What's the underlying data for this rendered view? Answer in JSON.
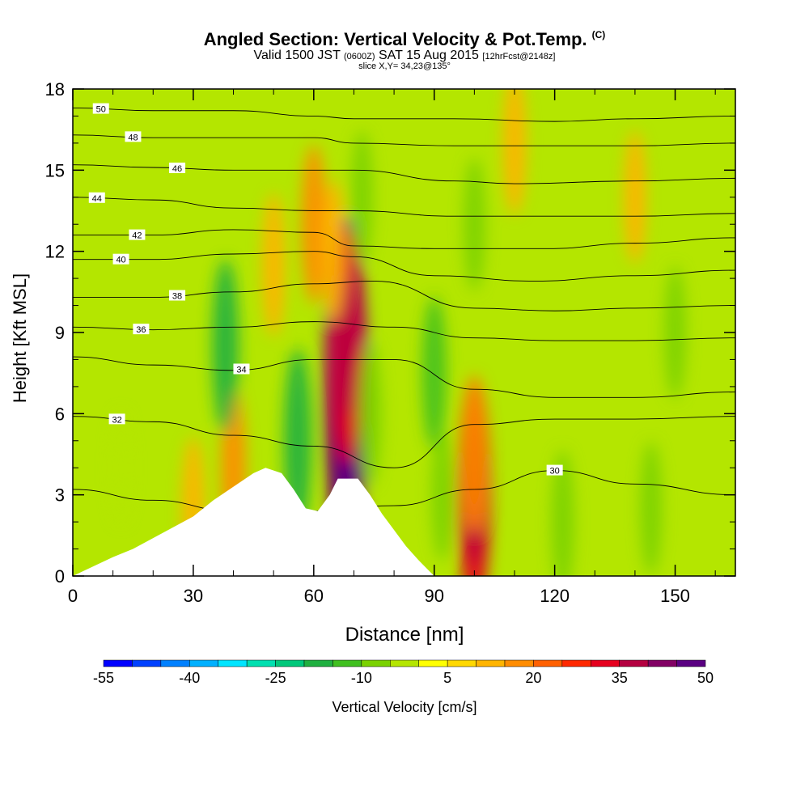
{
  "header": {
    "title": "Angled Section: Vertical Velocity & Pot.Temp.",
    "title_tag": "(C)",
    "subtitle_a": "Valid 1500 JST",
    "subtitle_small_a": "(0600Z)",
    "subtitle_b": "SAT 15 Aug 2015",
    "subtitle_small_b": "[12hrFcst@2148z]",
    "slice": "slice X,Y= 34,23@135°"
  },
  "chart_data": {
    "type": "heatmap",
    "title": "Angled Section: Vertical Velocity & Pot.Temp.",
    "xlabel": "Distance [nm]",
    "ylabel": "Height [Kft MSL]",
    "xlim": [
      0,
      165
    ],
    "ylim": [
      0,
      18
    ],
    "x_ticks": [
      0,
      30,
      60,
      90,
      120,
      150
    ],
    "x_tick_labels": [
      "0",
      "30",
      "60",
      "90",
      "120",
      "150"
    ],
    "y_ticks": [
      0,
      3,
      6,
      9,
      12,
      15,
      18
    ],
    "y_tick_labels": [
      "0",
      "3",
      "6",
      "9",
      "12",
      "15",
      "18"
    ],
    "colorbar": {
      "label": "Vertical Velocity [cm/s]",
      "tick_labels": [
        "-55",
        "-40",
        "-25",
        "-10",
        "5",
        "20",
        "35",
        "50"
      ],
      "tick_values": [
        -55,
        -40,
        -25,
        -10,
        5,
        20,
        35,
        50
      ],
      "colors": [
        "#0000ff",
        "#0040ff",
        "#0080ff",
        "#00b0ff",
        "#00e5ff",
        "#00e0b0",
        "#00c87a",
        "#20b040",
        "#40c020",
        "#7ad200",
        "#b4e600",
        "#ffff00",
        "#ffd800",
        "#ffb400",
        "#ff8c00",
        "#ff6000",
        "#ff2800",
        "#e6001e",
        "#b40040",
        "#820064",
        "#5a0082"
      ]
    },
    "terrain_profile": [
      {
        "x": 0,
        "y": 0.0
      },
      {
        "x": 10,
        "y": 0.7
      },
      {
        "x": 15,
        "y": 1.0
      },
      {
        "x": 20,
        "y": 1.4
      },
      {
        "x": 25,
        "y": 1.8
      },
      {
        "x": 30,
        "y": 2.2
      },
      {
        "x": 35,
        "y": 2.8
      },
      {
        "x": 40,
        "y": 3.3
      },
      {
        "x": 45,
        "y": 3.8
      },
      {
        "x": 48,
        "y": 4.0
      },
      {
        "x": 52,
        "y": 3.8
      },
      {
        "x": 55,
        "y": 3.2
      },
      {
        "x": 58,
        "y": 2.5
      },
      {
        "x": 61,
        "y": 2.4
      },
      {
        "x": 64,
        "y": 3.0
      },
      {
        "x": 66,
        "y": 3.6
      },
      {
        "x": 71,
        "y": 3.6
      },
      {
        "x": 74,
        "y": 3.0
      },
      {
        "x": 77,
        "y": 2.3
      },
      {
        "x": 80,
        "y": 1.7
      },
      {
        "x": 83,
        "y": 1.1
      },
      {
        "x": 86,
        "y": 0.6
      },
      {
        "x": 88,
        "y": 0.3
      },
      {
        "x": 90,
        "y": 0.0
      },
      {
        "x": 165,
        "y": 0.0
      }
    ],
    "velocity_cells": [
      {
        "x": 68,
        "y": 7.0,
        "w": 50
      },
      {
        "x": 68,
        "y": 5.0,
        "w": 40
      },
      {
        "x": 68,
        "y": 8.5,
        "w": 30
      },
      {
        "x": 100,
        "y": 3.0,
        "w": 30
      },
      {
        "x": 100,
        "y": 4.5,
        "w": 15
      },
      {
        "x": 40,
        "y": 4.0,
        "w": 15
      },
      {
        "x": 30,
        "y": 2.5,
        "w": 12
      },
      {
        "x": 60,
        "y": 13.0,
        "w": 15
      },
      {
        "x": 65,
        "y": 12.0,
        "w": 12
      },
      {
        "x": 50,
        "y": 11.5,
        "w": 12
      },
      {
        "x": 110,
        "y": 16.0,
        "w": 12
      },
      {
        "x": 140,
        "y": 14.0,
        "w": 10
      },
      {
        "x": 56,
        "y": 5.0,
        "w": -20
      },
      {
        "x": 74,
        "y": 6.0,
        "w": -12
      },
      {
        "x": 38,
        "y": 8.5,
        "w": -18
      },
      {
        "x": 90,
        "y": 7.5,
        "w": -14
      },
      {
        "x": 92,
        "y": 3.0,
        "w": -10
      },
      {
        "x": 122,
        "y": 2.0,
        "w": -12
      },
      {
        "x": 144,
        "y": 2.5,
        "w": -10
      },
      {
        "x": 100,
        "y": 13.0,
        "w": -10
      },
      {
        "x": 72,
        "y": 14.0,
        "w": -10
      },
      {
        "x": 150,
        "y": 9.0,
        "w": -10
      },
      {
        "x": 12,
        "y": 4.0,
        "w": -6
      }
    ],
    "theta_contours": [
      {
        "value": 30,
        "label": "30",
        "label_x": 120,
        "points": [
          [
            0,
            3.2
          ],
          [
            20,
            2.8
          ],
          [
            40,
            2.4
          ],
          [
            60,
            2.4
          ],
          [
            80,
            2.6
          ],
          [
            100,
            3.2
          ],
          [
            120,
            3.9
          ],
          [
            140,
            3.4
          ],
          [
            165,
            3.0
          ]
        ]
      },
      {
        "value": 32,
        "label": "32",
        "label_x": 11,
        "points": [
          [
            0,
            5.9
          ],
          [
            20,
            5.7
          ],
          [
            40,
            5.2
          ],
          [
            60,
            4.8
          ],
          [
            80,
            4.0
          ],
          [
            100,
            5.6
          ],
          [
            120,
            5.8
          ],
          [
            140,
            5.8
          ],
          [
            165,
            5.9
          ]
        ]
      },
      {
        "value": 34,
        "label": "34",
        "label_x": 42,
        "points": [
          [
            0,
            8.1
          ],
          [
            20,
            7.8
          ],
          [
            40,
            7.6
          ],
          [
            60,
            8.0
          ],
          [
            80,
            8.0
          ],
          [
            100,
            6.9
          ],
          [
            120,
            6.6
          ],
          [
            140,
            6.6
          ],
          [
            165,
            6.8
          ]
        ]
      },
      {
        "value": 36,
        "label": "36",
        "label_x": 17,
        "points": [
          [
            0,
            9.2
          ],
          [
            20,
            9.1
          ],
          [
            40,
            9.2
          ],
          [
            60,
            9.4
          ],
          [
            80,
            9.2
          ],
          [
            100,
            8.8
          ],
          [
            120,
            8.7
          ],
          [
            140,
            8.7
          ],
          [
            165,
            8.8
          ]
        ]
      },
      {
        "value": 38,
        "label": "38",
        "label_x": 26,
        "points": [
          [
            0,
            10.3
          ],
          [
            20,
            10.3
          ],
          [
            40,
            10.5
          ],
          [
            60,
            10.8
          ],
          [
            75,
            10.9
          ],
          [
            100,
            9.9
          ],
          [
            120,
            9.8
          ],
          [
            140,
            9.9
          ],
          [
            165,
            10.0
          ]
        ]
      },
      {
        "value": 40,
        "label": "40",
        "label_x": 12,
        "points": [
          [
            0,
            11.7
          ],
          [
            20,
            11.7
          ],
          [
            40,
            11.9
          ],
          [
            60,
            12.0
          ],
          [
            70,
            11.8
          ],
          [
            90,
            11.1
          ],
          [
            115,
            10.9
          ],
          [
            140,
            11.1
          ],
          [
            165,
            11.3
          ]
        ]
      },
      {
        "value": 42,
        "label": "42",
        "label_x": 16,
        "points": [
          [
            0,
            12.6
          ],
          [
            20,
            12.6
          ],
          [
            40,
            12.8
          ],
          [
            60,
            12.7
          ],
          [
            70,
            12.2
          ],
          [
            90,
            12.1
          ],
          [
            118,
            12.1
          ],
          [
            140,
            12.3
          ],
          [
            165,
            12.5
          ]
        ]
      },
      {
        "value": 44,
        "label": "44",
        "label_x": 6,
        "points": [
          [
            0,
            14.0
          ],
          [
            20,
            13.9
          ],
          [
            40,
            13.6
          ],
          [
            60,
            13.5
          ],
          [
            70,
            13.5
          ],
          [
            95,
            13.3
          ],
          [
            120,
            13.3
          ],
          [
            140,
            13.3
          ],
          [
            165,
            13.4
          ]
        ]
      },
      {
        "value": 46,
        "label": "46",
        "label_x": 26,
        "points": [
          [
            0,
            15.2
          ],
          [
            20,
            15.1
          ],
          [
            40,
            15.0
          ],
          [
            60,
            15.0
          ],
          [
            70,
            15.0
          ],
          [
            95,
            14.6
          ],
          [
            110,
            14.5
          ],
          [
            140,
            14.6
          ],
          [
            165,
            14.7
          ]
        ]
      },
      {
        "value": 48,
        "label": "48",
        "label_x": 15,
        "points": [
          [
            0,
            16.3
          ],
          [
            20,
            16.2
          ],
          [
            40,
            16.2
          ],
          [
            60,
            16.2
          ],
          [
            70,
            16.0
          ],
          [
            95,
            15.9
          ],
          [
            120,
            15.9
          ],
          [
            140,
            15.9
          ],
          [
            165,
            16.0
          ]
        ]
      },
      {
        "value": 50,
        "label": "50",
        "label_x": 7,
        "points": [
          [
            0,
            17.3
          ],
          [
            20,
            17.2
          ],
          [
            40,
            17.2
          ],
          [
            60,
            17.0
          ],
          [
            70,
            16.9
          ],
          [
            95,
            16.9
          ],
          [
            120,
            16.8
          ],
          [
            140,
            16.9
          ],
          [
            165,
            17.0
          ]
        ]
      }
    ]
  }
}
